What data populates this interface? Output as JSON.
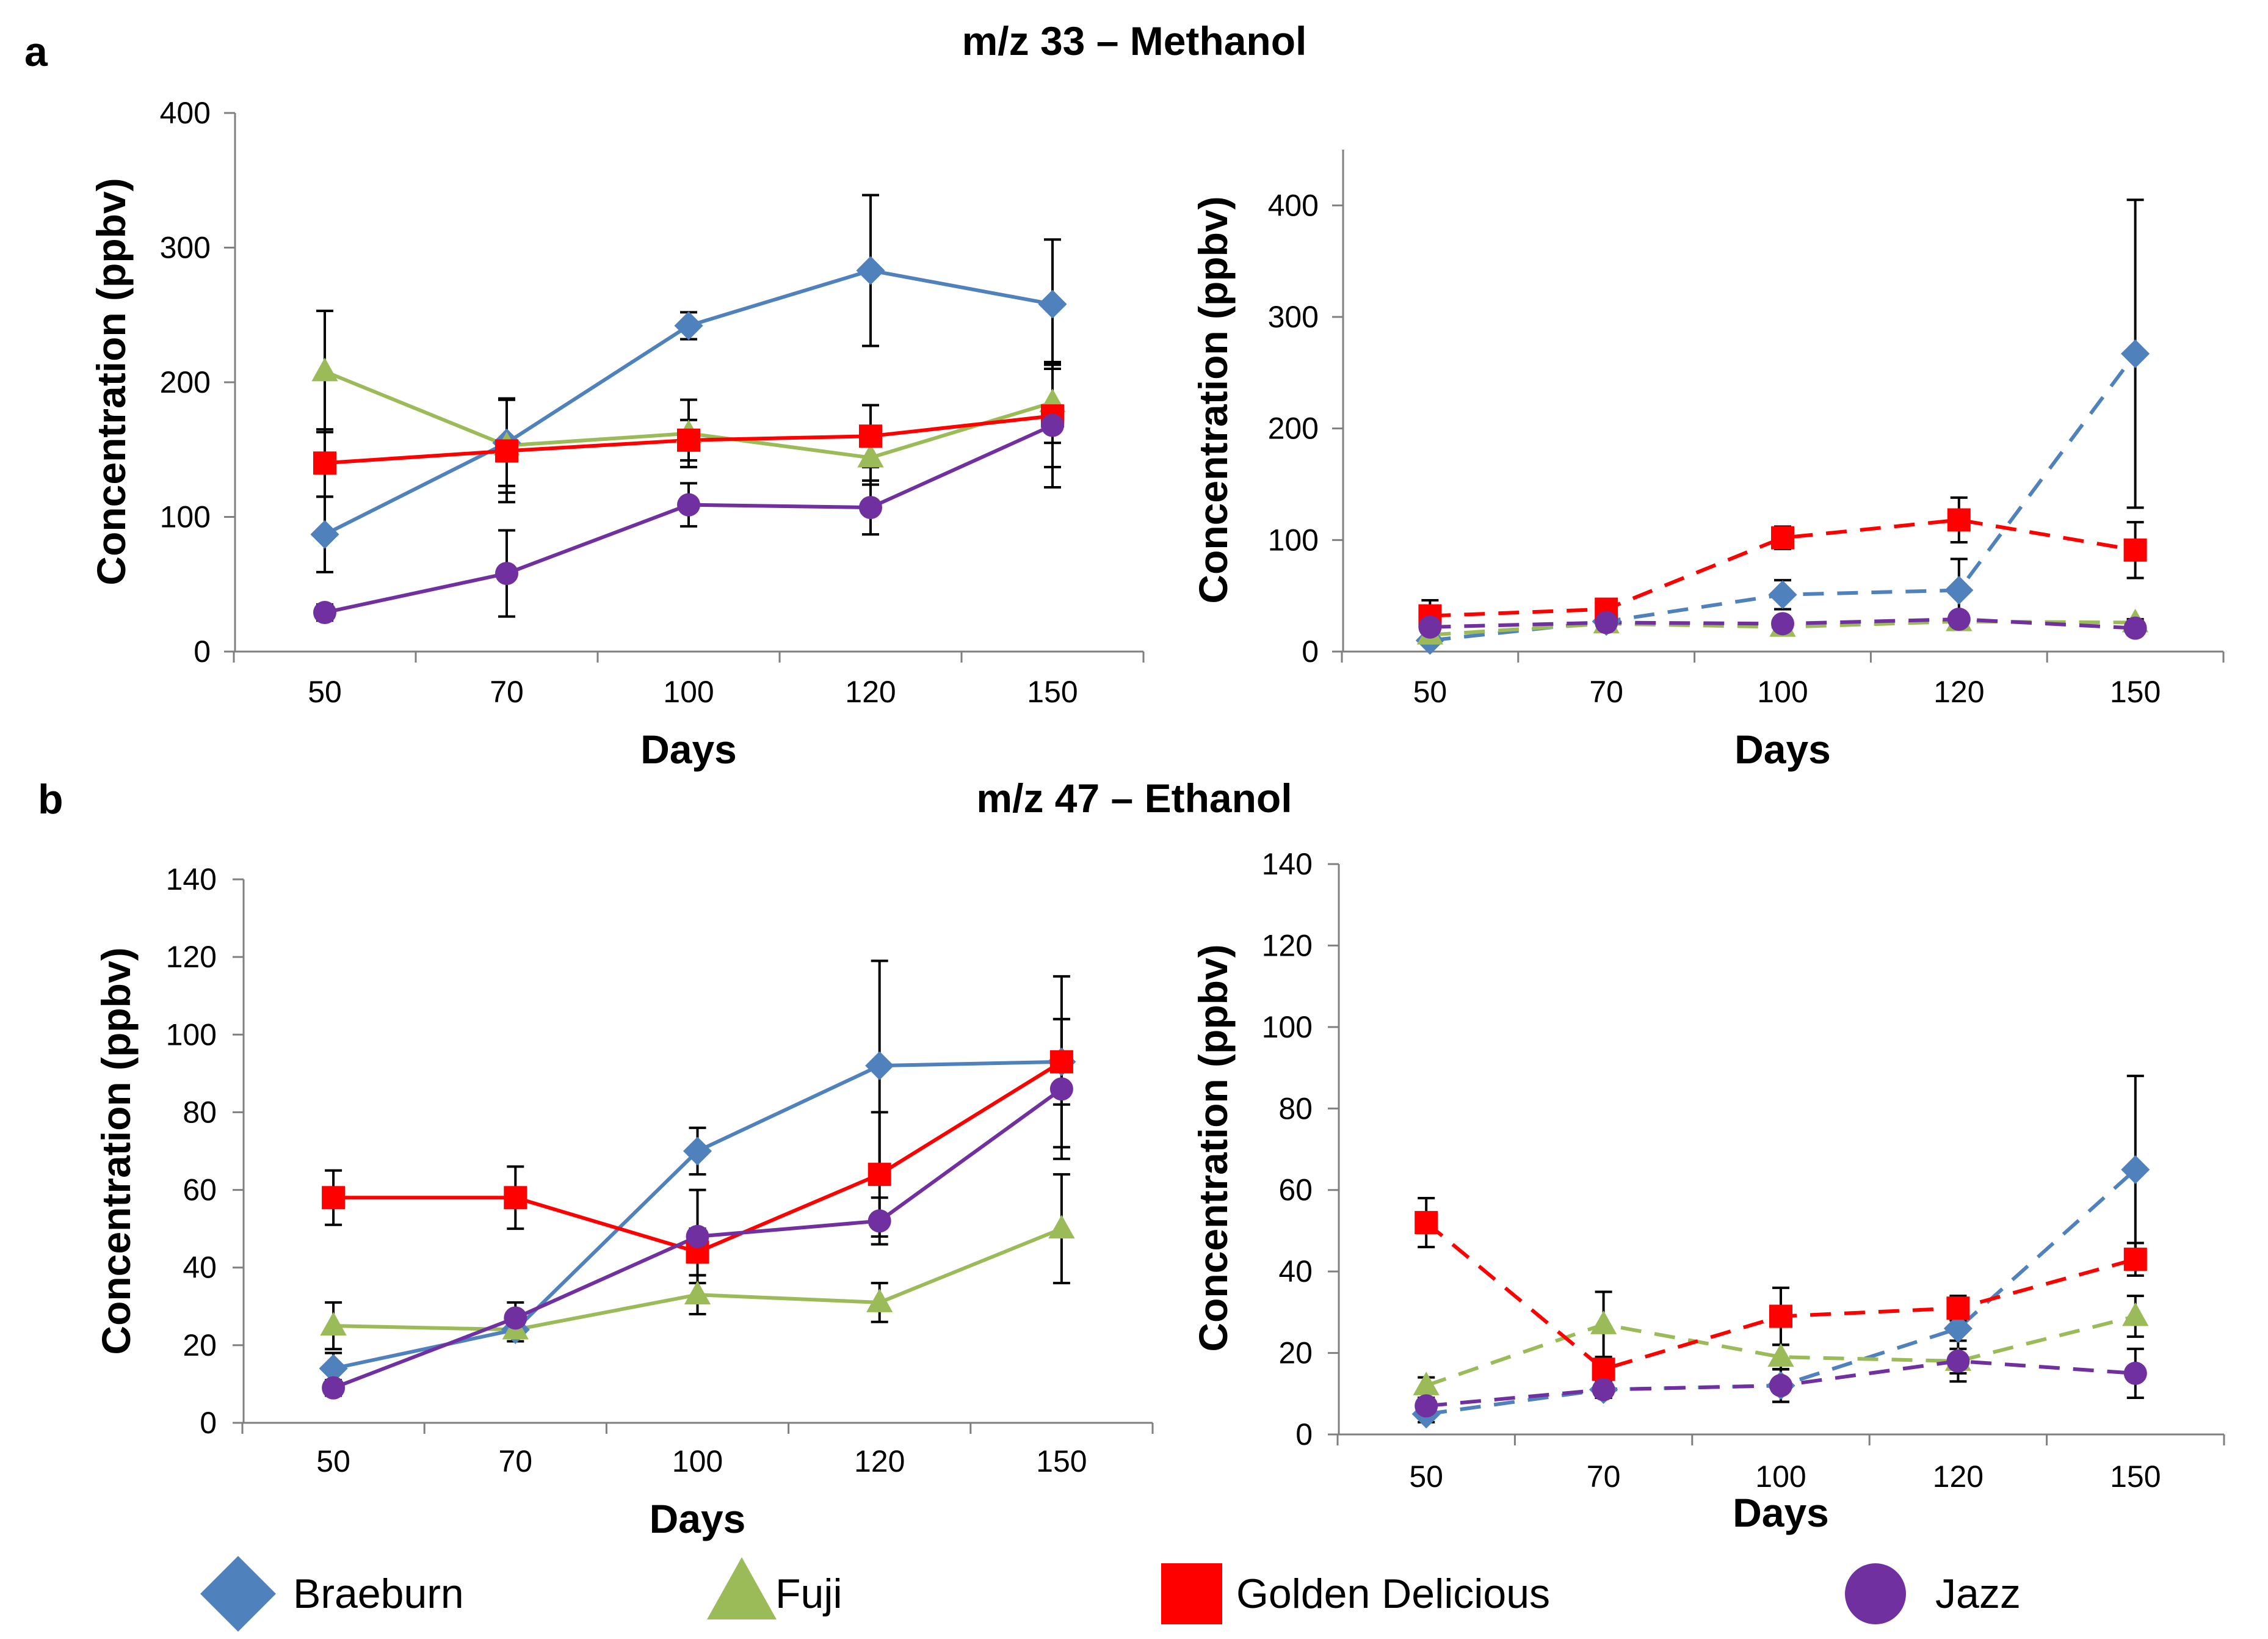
{
  "figure": {
    "panel_a_letter": "a",
    "panel_b_letter": "b",
    "row_a_title": "m/z  33 – Methanol",
    "row_b_title": "m/z  47 – Ethanol"
  },
  "legend": [
    {
      "name": "Braeburn",
      "color": "#4f81bd",
      "marker": "diamond"
    },
    {
      "name": "Fuji",
      "color": "#9bbb59",
      "marker": "triangle"
    },
    {
      "name": "Golden Delicious",
      "color": "#ff0000",
      "marker": "square"
    },
    {
      "name": "Jazz",
      "color": "#7030a0",
      "marker": "circle"
    }
  ],
  "chart_data": [
    {
      "id": "methanol-left",
      "type": "line",
      "line_style": "solid",
      "categories": [
        "50",
        "70",
        "100",
        "120",
        "150"
      ],
      "xlabel": "Days",
      "ylabel": "Concentration (ppbv)",
      "ylim": [
        0,
        400
      ],
      "yticks": [
        0,
        100,
        200,
        300,
        400
      ],
      "series": [
        {
          "name": "Braeburn",
          "values": [
            87,
            155,
            242,
            283,
            258
          ],
          "errors": [
            28,
            32,
            10,
            56,
            48
          ]
        },
        {
          "name": "Fuji",
          "values": [
            208,
            153,
            162,
            144,
            185
          ],
          "errors": [
            45,
            35,
            25,
            20,
            30
          ]
        },
        {
          "name": "Golden Delicious",
          "values": [
            140,
            149,
            157,
            160,
            175
          ],
          "errors": [
            25,
            38,
            15,
            23,
            38
          ]
        },
        {
          "name": "Jazz",
          "values": [
            29,
            58,
            109,
            107,
            168
          ],
          "errors": [
            6,
            32,
            16,
            20,
            46
          ]
        }
      ]
    },
    {
      "id": "methanol-right",
      "type": "line",
      "line_style": "dashed",
      "categories": [
        "50",
        "70",
        "100",
        "120",
        "150"
      ],
      "xlabel": "Days",
      "ylabel": "Concentration (ppbv)",
      "ylim": [
        0,
        450
      ],
      "yticks": [
        0,
        100,
        200,
        300,
        400
      ],
      "series": [
        {
          "name": "Braeburn",
          "values": [
            10,
            27,
            51,
            55,
            267
          ],
          "errors": [
            4,
            5,
            13,
            28,
            138
          ]
        },
        {
          "name": "Fuji",
          "values": [
            15,
            25,
            22,
            27,
            26
          ],
          "errors": [
            3,
            4,
            4,
            3,
            3
          ]
        },
        {
          "name": "Golden Delicious",
          "values": [
            32,
            38,
            102,
            118,
            91
          ],
          "errors": [
            14,
            4,
            10,
            20,
            25
          ]
        },
        {
          "name": "Jazz",
          "values": [
            22,
            26,
            25,
            29,
            21
          ],
          "errors": [
            4,
            3,
            3,
            3,
            3
          ]
        }
      ]
    },
    {
      "id": "ethanol-left",
      "type": "line",
      "line_style": "solid",
      "categories": [
        "50",
        "70",
        "100",
        "120",
        "150"
      ],
      "xlabel": "Days",
      "ylabel": "Concentration (ppbv)",
      "ylim": [
        0,
        140
      ],
      "yticks": [
        0,
        20,
        40,
        60,
        80,
        100,
        120,
        140
      ],
      "series": [
        {
          "name": "Braeburn",
          "values": [
            14,
            24,
            70,
            92,
            93
          ],
          "errors": [
            4,
            3,
            6,
            27,
            22
          ]
        },
        {
          "name": "Fuji",
          "values": [
            25,
            24,
            33,
            31,
            50
          ],
          "errors": [
            6,
            2,
            5,
            5,
            14
          ]
        },
        {
          "name": "Golden Delicious",
          "values": [
            58,
            58,
            44,
            64,
            93
          ],
          "errors": [
            7,
            8,
            6,
            16,
            11
          ]
        },
        {
          "name": "Jazz",
          "values": [
            9,
            27,
            48,
            52,
            86
          ],
          "errors": [
            2,
            4,
            12,
            6,
            18
          ]
        }
      ]
    },
    {
      "id": "ethanol-right",
      "type": "line",
      "line_style": "dashed",
      "categories": [
        "50",
        "70",
        "100",
        "120",
        "150"
      ],
      "xlabel": "Days",
      "ylabel": "Concentration (ppbv)",
      "ylim": [
        0,
        140
      ],
      "yticks": [
        0,
        20,
        40,
        60,
        80,
        100,
        120,
        140
      ],
      "series": [
        {
          "name": "Braeburn",
          "values": [
            5,
            11,
            12,
            26,
            65
          ],
          "errors": [
            2,
            2,
            4,
            3,
            23
          ]
        },
        {
          "name": "Fuji",
          "values": [
            12,
            27,
            19,
            18,
            29
          ],
          "errors": [
            2,
            8,
            3,
            3,
            5
          ]
        },
        {
          "name": "Golden Delicious",
          "values": [
            52,
            16,
            29,
            31,
            43
          ],
          "errors": [
            6,
            3,
            7,
            3,
            4
          ]
        },
        {
          "name": "Jazz",
          "values": [
            7,
            11,
            12,
            18,
            15
          ],
          "errors": [
            2,
            2,
            4,
            5,
            6
          ]
        }
      ]
    }
  ]
}
